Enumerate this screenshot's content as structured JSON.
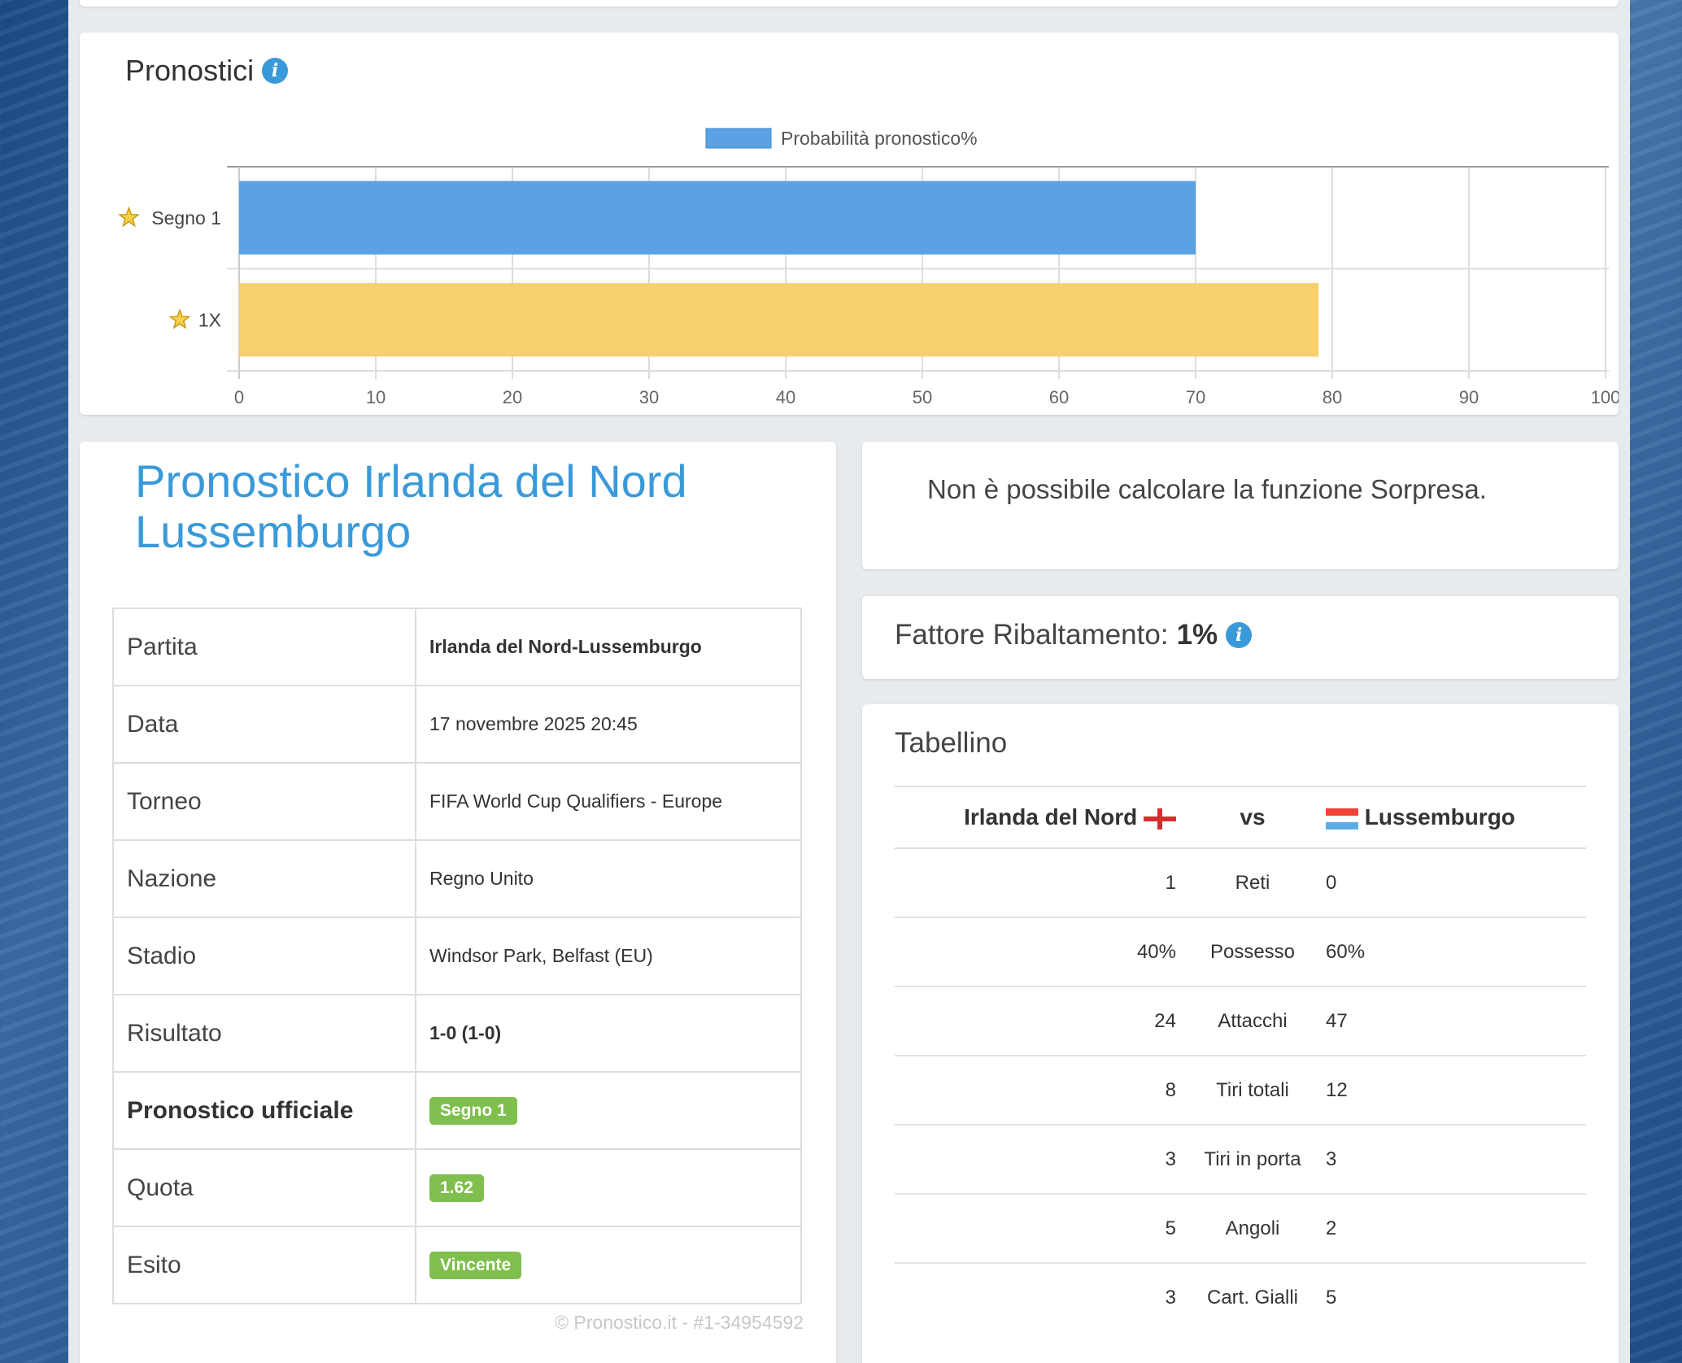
{
  "chart": {
    "title": "Pronostici",
    "legend_label": "Probabilità pronostico%"
  },
  "chart_data": {
    "type": "bar",
    "orientation": "horizontal",
    "categories": [
      "Segno 1",
      "1X"
    ],
    "values": [
      70,
      79
    ],
    "colors": [
      "#5aa2e4",
      "#f5d06d"
    ],
    "xlim": [
      0,
      100
    ],
    "xticks": [
      "0",
      "10",
      "20",
      "30",
      "40",
      "50",
      "60",
      "70",
      "80",
      "90",
      "100"
    ],
    "series": [
      {
        "name": "Probabilità pronostico%",
        "values": [
          70,
          79
        ]
      }
    ],
    "legend": "top-center",
    "grid": true
  },
  "match": {
    "heading": "Pronostico Irlanda del Nord Lussemburgo",
    "rows": [
      {
        "key": "Partita",
        "value": "Irlanda del Nord-Lussemburgo"
      },
      {
        "key": "Data",
        "value": "17 novembre 2025 20:45"
      },
      {
        "key": "Torneo",
        "value": "FIFA World Cup Qualifiers - Europe"
      },
      {
        "key": "Nazione",
        "value": "Regno Unito"
      },
      {
        "key": "Stadio",
        "value": "Windsor Park, Belfast (EU)"
      },
      {
        "key": "Risultato",
        "value": "1-0 (1-0)"
      },
      {
        "key": "Pronostico ufficiale",
        "value": "Segno 1"
      },
      {
        "key": "Quota",
        "value": "1.62"
      },
      {
        "key": "Esito",
        "value": "Vincente"
      }
    ],
    "copyright": "© Pronostico.it - #1-34954592"
  },
  "sorpresa": {
    "text": "Non è possibile calcolare la funzione Sorpresa."
  },
  "fattore": {
    "label": "Fattore Ribaltamento:",
    "value": "1%"
  },
  "tabellino": {
    "title": "Tabellino",
    "home": "Irlanda del Nord",
    "vs": "vs",
    "away": "Lussemburgo",
    "stats": [
      {
        "home": "1",
        "label": "Reti",
        "away": "0"
      },
      {
        "home": "40%",
        "label": "Possesso",
        "away": "60%"
      },
      {
        "home": "24",
        "label": "Attacchi",
        "away": "47"
      },
      {
        "home": "8",
        "label": "Tiri totali",
        "away": "12"
      },
      {
        "home": "3",
        "label": "Tiri in porta",
        "away": "3"
      },
      {
        "home": "5",
        "label": "Angoli",
        "away": "2"
      },
      {
        "home": "3",
        "label": "Cart. Gialli",
        "away": "5"
      }
    ]
  },
  "colors": {
    "accent": "#3a9ad9",
    "badge_green": "#7fbf4d",
    "bar_blue": "#5aa2e4",
    "bar_yellow": "#f5d06d"
  }
}
